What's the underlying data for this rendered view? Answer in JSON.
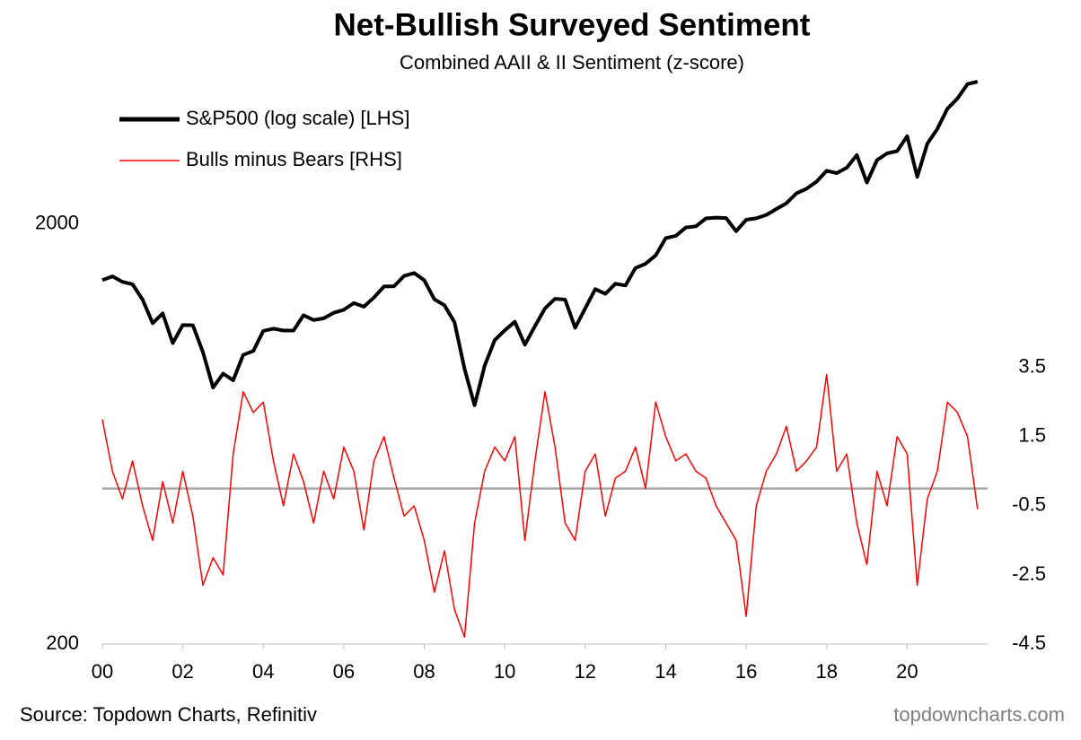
{
  "chart_data": {
    "type": "line",
    "title": "Net-Bullish Surveyed Sentiment",
    "subtitle": "Combined AAII & II Sentiment (z-score)",
    "source": "Source: Topdown Charts, Refinitiv",
    "watermark": "topdowncharts.com",
    "legend": "upper left",
    "log_scale_y": true,
    "xlim": [
      2000,
      2022
    ],
    "xticks": [
      {
        "value": 2000,
        "label": "00"
      },
      {
        "value": 2002,
        "label": "02"
      },
      {
        "value": 2004,
        "label": "04"
      },
      {
        "value": 2006,
        "label": "06"
      },
      {
        "value": 2008,
        "label": "08"
      },
      {
        "value": 2010,
        "label": "10"
      },
      {
        "value": 2012,
        "label": "12"
      },
      {
        "value": 2014,
        "label": "14"
      },
      {
        "value": 2016,
        "label": "16"
      },
      {
        "value": 2018,
        "label": "18"
      },
      {
        "value": 2020,
        "label": "20"
      }
    ],
    "ylim": [
      200,
      5000
    ],
    "yticks": [
      200,
      2000
    ],
    "y2lim": [
      -4.5,
      12.5
    ],
    "y2ticks": [
      -4.5,
      -2.5,
      -0.5,
      1.5,
      3.5
    ],
    "zero_line": 0,
    "x": [
      2000,
      2000.25,
      2000.5,
      2000.75,
      2001,
      2001.25,
      2001.5,
      2001.75,
      2002,
      2002.25,
      2002.5,
      2002.75,
      2003,
      2003.25,
      2003.5,
      2003.75,
      2004,
      2004.25,
      2004.5,
      2004.75,
      2005,
      2005.25,
      2005.5,
      2005.75,
      2006,
      2006.25,
      2006.5,
      2006.75,
      2007,
      2007.25,
      2007.5,
      2007.75,
      2008,
      2008.25,
      2008.5,
      2008.75,
      2009,
      2009.25,
      2009.5,
      2009.75,
      2010,
      2010.25,
      2010.5,
      2010.75,
      2011,
      2011.25,
      2011.5,
      2011.75,
      2012,
      2012.25,
      2012.5,
      2012.75,
      2013,
      2013.25,
      2013.5,
      2013.75,
      2014,
      2014.25,
      2014.5,
      2014.75,
      2015,
      2015.25,
      2015.5,
      2015.75,
      2016,
      2016.25,
      2016.5,
      2016.75,
      2017,
      2017.25,
      2017.5,
      2017.75,
      2018,
      2018.25,
      2018.5,
      2018.75,
      2019,
      2019.25,
      2019.5,
      2019.75,
      2020,
      2020.25,
      2020.5,
      2020.75,
      2021,
      2021.25,
      2021.5,
      2021.75
    ],
    "series": [
      {
        "name": "S&P500 (log scale) [LHS]",
        "color": "#000000",
        "axis": "y",
        "values": [
          1469,
          1499,
          1455,
          1436,
          1320,
          1160,
          1224,
          1040,
          1148,
          1147,
          990,
          815,
          880,
          848,
          975,
          996,
          1112,
          1126,
          1114,
          1114,
          1212,
          1180,
          1191,
          1228,
          1248,
          1295,
          1270,
          1335,
          1418,
          1420,
          1503,
          1527,
          1468,
          1322,
          1280,
          1166,
          903,
          740,
          919,
          1057,
          1115,
          1169,
          1031,
          1141,
          1258,
          1326,
          1320,
          1131,
          1258,
          1398,
          1362,
          1440,
          1426,
          1569,
          1606,
          1682,
          1848,
          1872,
          1960,
          1972,
          2059,
          2068,
          2063,
          1920,
          2044,
          2060,
          2099,
          2168,
          2238,
          2363,
          2423,
          2519,
          2674,
          2640,
          2718,
          2914,
          2507,
          2834,
          2941,
          2977,
          3230,
          2585,
          3100,
          3363,
          3756,
          3972,
          4297,
          4357
        ]
      },
      {
        "name": "Bulls minus Bears [RHS]",
        "color": "#ff0000",
        "axis": "y2",
        "values": [
          2.0,
          0.5,
          -0.3,
          0.8,
          -0.5,
          -1.5,
          0.2,
          -1.0,
          0.5,
          -0.8,
          -2.8,
          -2.0,
          -2.5,
          1.0,
          2.8,
          2.2,
          2.5,
          0.8,
          -0.5,
          1.0,
          0.2,
          -1.0,
          0.5,
          -0.3,
          1.2,
          0.5,
          -1.2,
          0.8,
          1.5,
          0.3,
          -0.8,
          -0.5,
          -1.5,
          -3.0,
          -1.8,
          -3.5,
          -4.3,
          -1.0,
          0.5,
          1.2,
          0.8,
          1.5,
          -1.5,
          0.8,
          2.8,
          1.2,
          -1.0,
          -1.5,
          0.5,
          1.0,
          -0.8,
          0.3,
          0.5,
          1.2,
          0.0,
          2.5,
          1.5,
          0.8,
          1.0,
          0.5,
          0.3,
          -0.5,
          -1.0,
          -1.5,
          -3.7,
          -0.5,
          0.5,
          1.0,
          1.8,
          0.5,
          0.8,
          1.2,
          3.3,
          0.5,
          1.0,
          -1.0,
          -2.2,
          0.5,
          -0.5,
          1.5,
          1.0,
          -2.8,
          -0.3,
          0.5,
          2.5,
          2.2,
          1.5,
          -0.6
        ]
      }
    ]
  }
}
